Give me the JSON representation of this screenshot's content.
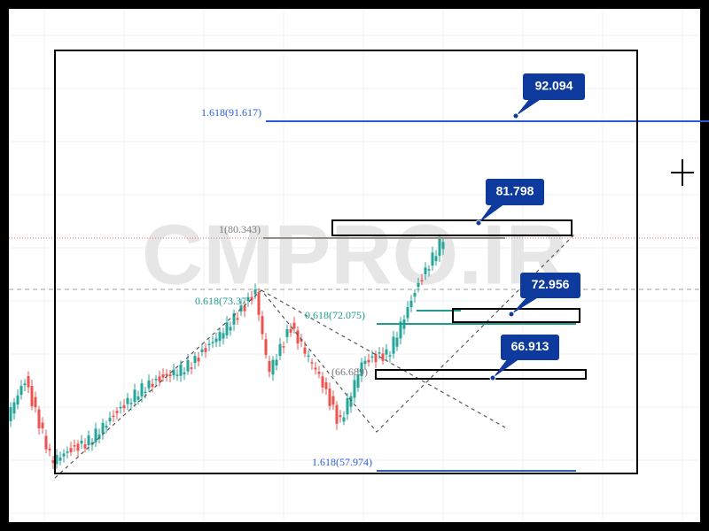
{
  "watermark": "CMPRO.IR",
  "callouts": [
    {
      "label": "92.094"
    },
    {
      "label": "81.798"
    },
    {
      "label": "72.956"
    },
    {
      "label": "66.913"
    }
  ],
  "fib_levels": [
    {
      "label": "1.618(91.617)"
    },
    {
      "label": "1(80.343)"
    },
    {
      "label": "0.618(73.37"
    },
    {
      "label": "0.618(72.075)"
    },
    {
      "label": "(66.689)"
    },
    {
      "label": "1.618(57.974)"
    }
  ]
}
